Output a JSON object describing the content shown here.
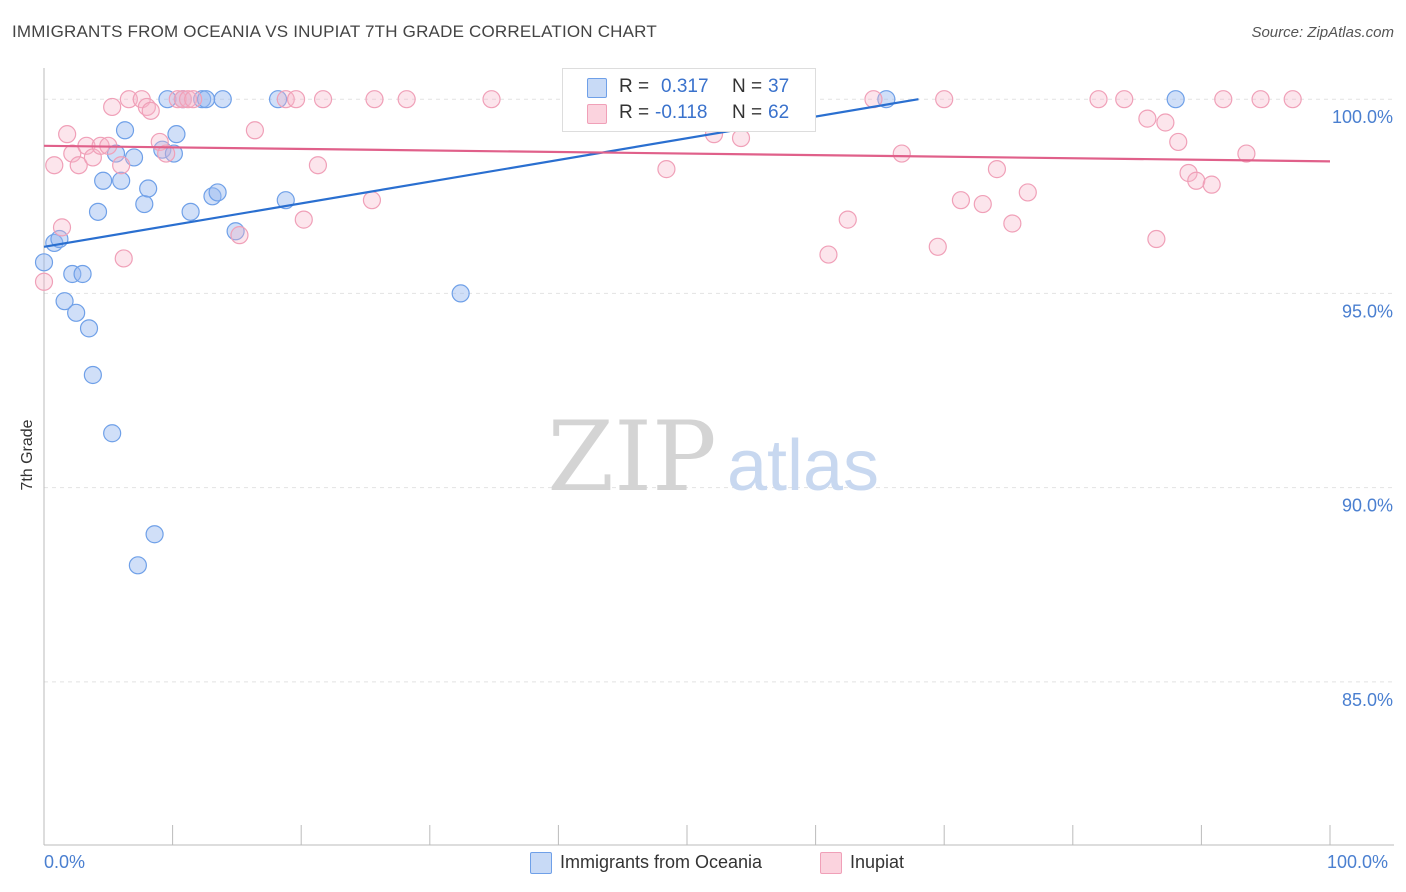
{
  "header": {
    "title": "IMMIGRANTS FROM OCEANIA VS INUPIAT 7TH GRADE CORRELATION CHART",
    "source": "Source: ZipAtlas.com"
  },
  "watermark": {
    "zip": "ZIP",
    "atlas": "atlas"
  },
  "legend": {
    "r_label": "R =",
    "n_label": "N =",
    "rows": [
      {
        "r": "0.317",
        "n": "37",
        "color": "#6fa0e8"
      },
      {
        "r": "-0.118",
        "n": "62",
        "color": "#f0a0b8"
      }
    ]
  },
  "bottom_legend": [
    "Immigrants from Oceania",
    "Inupiat"
  ],
  "chart_data": {
    "type": "scatter",
    "title": "IMMIGRANTS FROM OCEANIA VS INUPIAT 7TH GRADE CORRELATION CHART",
    "xlabel": "",
    "ylabel": "7th Grade",
    "xlim": [
      0,
      100
    ],
    "ylim": [
      80.8,
      100.7
    ],
    "x_tick_labels": [
      "0.0%",
      "100.0%"
    ],
    "y_ticks": [
      85,
      90,
      95,
      100
    ],
    "y_tick_labels": [
      "85.0%",
      "90.0%",
      "95.0%",
      "100.0%"
    ],
    "series": [
      {
        "name": "Immigrants from Oceania",
        "color": "#6fa0e8",
        "line_color": "#2a6fd0",
        "r": 0.317,
        "n": 37,
        "trend": [
          [
            0.0,
            96.2
          ],
          [
            68.0,
            100.0
          ]
        ],
        "points": [
          [
            0.0,
            95.8
          ],
          [
            0.8,
            96.3
          ],
          [
            1.2,
            96.4
          ],
          [
            1.6,
            94.8
          ],
          [
            2.2,
            95.5
          ],
          [
            2.5,
            94.5
          ],
          [
            3.0,
            95.5
          ],
          [
            3.5,
            94.1
          ],
          [
            3.8,
            92.9
          ],
          [
            4.2,
            97.1
          ],
          [
            4.6,
            97.9
          ],
          [
            5.3,
            91.4
          ],
          [
            5.6,
            98.6
          ],
          [
            6.0,
            97.9
          ],
          [
            6.3,
            99.2
          ],
          [
            7.0,
            98.5
          ],
          [
            7.8,
            97.3
          ],
          [
            8.1,
            97.7
          ],
          [
            8.6,
            88.8
          ],
          [
            9.2,
            98.7
          ],
          [
            9.6,
            100.0
          ],
          [
            10.1,
            98.6
          ],
          [
            10.3,
            99.1
          ],
          [
            10.8,
            100.0
          ],
          [
            11.4,
            97.1
          ],
          [
            12.3,
            100.0
          ],
          [
            12.6,
            100.0
          ],
          [
            13.1,
            97.5
          ],
          [
            13.5,
            97.6
          ],
          [
            13.9,
            100.0
          ],
          [
            14.9,
            96.6
          ],
          [
            18.2,
            100.0
          ],
          [
            18.8,
            97.4
          ],
          [
            32.4,
            95.0
          ],
          [
            7.3,
            88.0
          ],
          [
            65.5,
            100.0
          ],
          [
            88.0,
            100.0
          ]
        ]
      },
      {
        "name": "Inupiat",
        "color": "#f0a0b8",
        "line_color": "#e0608a",
        "r": -0.118,
        "n": 62,
        "trend": [
          [
            0.0,
            98.8
          ],
          [
            100.0,
            98.4
          ]
        ],
        "points": [
          [
            0.0,
            95.3
          ],
          [
            0.8,
            98.3
          ],
          [
            1.4,
            96.7
          ],
          [
            1.8,
            99.1
          ],
          [
            2.2,
            98.6
          ],
          [
            2.7,
            98.3
          ],
          [
            3.3,
            98.8
          ],
          [
            3.8,
            98.5
          ],
          [
            4.4,
            98.8
          ],
          [
            5.0,
            98.8
          ],
          [
            5.3,
            99.8
          ],
          [
            6.0,
            98.3
          ],
          [
            6.2,
            95.9
          ],
          [
            6.6,
            100.0
          ],
          [
            7.6,
            100.0
          ],
          [
            8.0,
            99.8
          ],
          [
            8.3,
            99.7
          ],
          [
            9.0,
            98.9
          ],
          [
            9.5,
            98.6
          ],
          [
            10.4,
            100.0
          ],
          [
            10.8,
            100.0
          ],
          [
            11.2,
            100.0
          ],
          [
            11.6,
            100.0
          ],
          [
            15.2,
            96.5
          ],
          [
            16.4,
            99.2
          ],
          [
            18.8,
            100.0
          ],
          [
            19.6,
            100.0
          ],
          [
            20.2,
            96.9
          ],
          [
            21.3,
            98.3
          ],
          [
            21.7,
            100.0
          ],
          [
            25.5,
            97.4
          ],
          [
            25.7,
            100.0
          ],
          [
            28.2,
            100.0
          ],
          [
            34.8,
            100.0
          ],
          [
            47.5,
            100.0
          ],
          [
            48.4,
            98.2
          ],
          [
            52.1,
            99.1
          ],
          [
            54.2,
            99.0
          ],
          [
            61.0,
            96.0
          ],
          [
            62.5,
            96.9
          ],
          [
            64.5,
            100.0
          ],
          [
            66.7,
            98.6
          ],
          [
            69.5,
            96.2
          ],
          [
            70.0,
            100.0
          ],
          [
            71.3,
            97.4
          ],
          [
            73.0,
            97.3
          ],
          [
            74.1,
            98.2
          ],
          [
            75.3,
            96.8
          ],
          [
            76.5,
            97.6
          ],
          [
            84.0,
            100.0
          ],
          [
            85.8,
            99.5
          ],
          [
            86.5,
            96.4
          ],
          [
            87.2,
            99.4
          ],
          [
            88.2,
            98.9
          ],
          [
            89.0,
            98.1
          ],
          [
            89.6,
            97.9
          ],
          [
            90.8,
            97.8
          ],
          [
            93.5,
            98.6
          ],
          [
            91.7,
            100.0
          ],
          [
            94.6,
            100.0
          ],
          [
            97.1,
            100.0
          ],
          [
            82.0,
            100.0
          ]
        ]
      }
    ]
  }
}
